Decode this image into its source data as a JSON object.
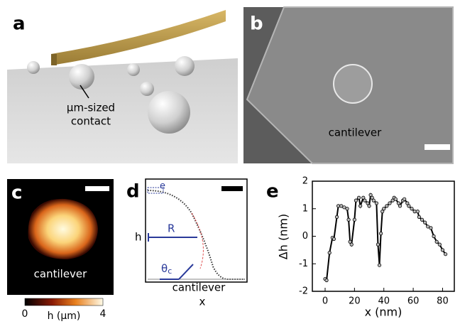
{
  "panel_a": {
    "label": "a",
    "annotation": [
      "μm-sized",
      "contact"
    ]
  },
  "panel_b": {
    "label": "b",
    "annotation": "cantilever"
  },
  "panel_c": {
    "label": "c",
    "annotation": "cantilever",
    "colorbar": {
      "min": 0,
      "max": 4,
      "label": "h (μm)"
    }
  },
  "panel_d": {
    "label": "d",
    "box_label": "e",
    "height_label": "h",
    "radius_label": "R",
    "angle_label": "θ",
    "angle_subscript": "c",
    "annotation": "cantilever",
    "xlabel": "x"
  },
  "chart_data": {
    "type": "line",
    "label": "e",
    "xlabel": "x (nm)",
    "ylabel": "Δh (nm)",
    "x": [
      0,
      1,
      3,
      5,
      6,
      8,
      9,
      11,
      13,
      15,
      16,
      17,
      18,
      20,
      21,
      23,
      24,
      26,
      27,
      29,
      30,
      31,
      32,
      33,
      35,
      36,
      37,
      38,
      39,
      40,
      42,
      44,
      46,
      47,
      48,
      50,
      51,
      53,
      54,
      56,
      57,
      59,
      61,
      63,
      64,
      66,
      68,
      70,
      72,
      74,
      76,
      78,
      80,
      82
    ],
    "values": [
      -1.55,
      -1.6,
      -0.6,
      -0.05,
      -0.1,
      0.7,
      1.1,
      1.1,
      1.05,
      1.0,
      0.6,
      -0.2,
      -0.3,
      0.6,
      1.3,
      1.4,
      1.1,
      1.4,
      1.3,
      1.2,
      1.1,
      1.5,
      1.4,
      1.3,
      1.2,
      -0.3,
      -1.05,
      0.1,
      0.9,
      1.0,
      1.1,
      1.2,
      1.3,
      1.4,
      1.35,
      1.2,
      1.1,
      1.3,
      1.35,
      1.2,
      1.1,
      1.0,
      0.9,
      0.9,
      0.7,
      0.6,
      0.5,
      0.35,
      0.3,
      0.0,
      -0.2,
      -0.3,
      -0.5,
      -0.65
    ],
    "color": "#000000",
    "xlim": [
      -8.7,
      88
    ],
    "ylim": [
      -2,
      2
    ],
    "xticks": [
      0,
      20,
      40,
      60,
      80
    ],
    "yticks": [
      -2,
      -1,
      0,
      1,
      2
    ]
  }
}
